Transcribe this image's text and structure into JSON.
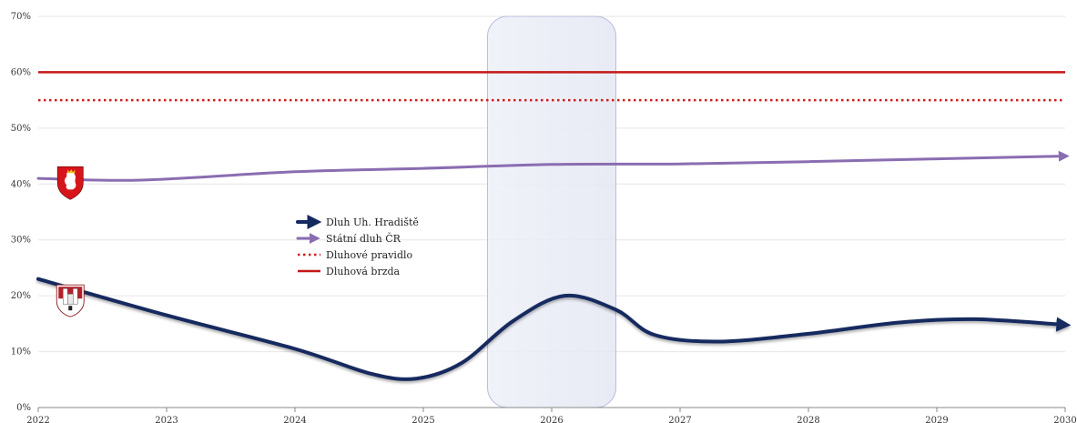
{
  "chart_data": {
    "type": "line",
    "title": "",
    "xlabel": "",
    "ylabel": "",
    "x": [
      2022,
      2023,
      2024,
      2025,
      2026,
      2027,
      2028,
      2029,
      2030
    ],
    "xlim": [
      2022,
      2030
    ],
    "ylim": [
      0,
      70
    ],
    "y_ticks": [
      0,
      10,
      20,
      30,
      40,
      50,
      60,
      70
    ],
    "y_tick_labels": [
      "0%",
      "10%",
      "20%",
      "30%",
      "40%",
      "50%",
      "60%",
      "70%"
    ],
    "x_tick_labels": [
      "2022",
      "2023",
      "2024",
      "2025",
      "2026",
      "2027",
      "2028",
      "2029",
      "2030"
    ],
    "grid": true,
    "legend_position": "center-left",
    "highlight_band": [
      2025.5,
      2026.5
    ],
    "series": [
      {
        "name": "Dluh Uh. Hradiště",
        "style": "arrow",
        "color": "#14295e",
        "points": [
          [
            2022,
            23
          ],
          [
            2023,
            16.5
          ],
          [
            2024,
            10.5
          ],
          [
            2024.6,
            6
          ],
          [
            2024.95,
            5.2
          ],
          [
            2025.3,
            8
          ],
          [
            2025.7,
            15.5
          ],
          [
            2026.1,
            20
          ],
          [
            2026.5,
            17.5
          ],
          [
            2026.8,
            13
          ],
          [
            2027.3,
            11.8
          ],
          [
            2028,
            13.2
          ],
          [
            2028.7,
            15.2
          ],
          [
            2029.3,
            15.8
          ],
          [
            2030,
            14.8
          ]
        ]
      },
      {
        "name": "Státní dluh ČR",
        "style": "arrow",
        "color": "#8a6db1",
        "points": [
          [
            2022,
            41
          ],
          [
            2022.8,
            40.7
          ],
          [
            2024,
            42.2
          ],
          [
            2025,
            42.8
          ],
          [
            2026,
            43.5
          ],
          [
            2027,
            43.6
          ],
          [
            2028,
            44
          ],
          [
            2029,
            44.5
          ],
          [
            2030,
            45
          ]
        ]
      },
      {
        "name": "Dluhové pravidlo",
        "style": "dotted",
        "color": "#cc1f1f",
        "points": [
          [
            2022,
            55
          ],
          [
            2030,
            55
          ]
        ]
      },
      {
        "name": "Dluhová brzda",
        "style": "solid",
        "color": "#c41717",
        "points": [
          [
            2022,
            60
          ],
          [
            2030,
            60
          ]
        ]
      }
    ],
    "icons": [
      {
        "name": "czech-lion-coat-of-arms-icon",
        "series": "Státní dluh ČR",
        "x": 2022.25,
        "y": 40.5
      },
      {
        "name": "uherske-hradiste-coat-of-arms-icon",
        "series": "Dluh Uh. Hradiště",
        "x": 2022.25,
        "y": 19.5
      }
    ]
  }
}
